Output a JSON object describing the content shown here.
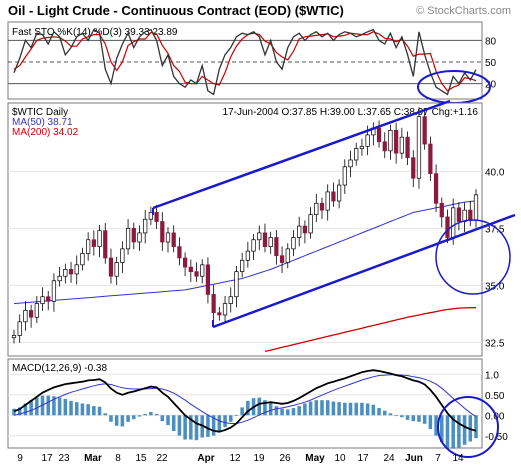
{
  "title": "Oil - Light Crude - Continuous Contract (EOD) ($WTIC)",
  "watermark": "© StockCharts.com",
  "colors": {
    "background": "#ffffff",
    "frame": "#7a7a7a",
    "up_candle": "#ffffff",
    "down_candle": "#8b1a3c",
    "candle_wick": "#000000",
    "ma50": "#3333cc",
    "ma200": "#cc0000",
    "sto_k": "#333333",
    "sto_d": "#cc0000",
    "macd_line": "#000000",
    "macd_signal": "#3333cc",
    "histogram": "#4a8fc0",
    "annotation": "#1a1acc",
    "title_bar": "#000000"
  },
  "sto_panel": {
    "label": "Fast STO %K(14) %D(3) 39.33 23.89",
    "ticks": [
      "80",
      "50",
      "20"
    ],
    "levels": [
      80,
      50,
      20
    ]
  },
  "price_panel": {
    "symbol": "$WTIC Daily",
    "ma50_label": "MA(50) 38.71",
    "ma200_label": "MA(200) 34.02",
    "ohlc": "17-Jun-2004 O:37.85 H:39.00 L:37.65 C:38.97 Chg:+1.16",
    "ticks": [
      "40.0",
      "37.5",
      "35.0",
      "32.5"
    ],
    "tick_values": [
      40.0,
      37.5,
      35.0,
      32.5
    ]
  },
  "macd_panel": {
    "label": "MACD(12,26,9) -0.38",
    "ticks": [
      "1.0",
      "0.50",
      "0.00",
      "-0.50"
    ],
    "tick_values": [
      1.0,
      0.5,
      0.0,
      -0.5
    ]
  },
  "x_axis": {
    "labels": [
      "9",
      "17",
      "23",
      "Mar",
      "8",
      "15",
      "22",
      "Apr",
      "12",
      "19",
      "26",
      "May",
      "10",
      "17",
      "24",
      "Jun",
      "7",
      "14"
    ]
  },
  "chart_data": {
    "type": "candlestick",
    "title": "Oil - Light Crude - Continuous Contract (EOD) ($WTIC)",
    "ylim": [
      31.9,
      43.0
    ],
    "series": [
      {
        "name": "$WTIC Daily",
        "open": [
          32.7,
          32.8,
          33.4,
          33.9,
          33.6,
          34.2,
          34.5,
          34.3,
          35.2,
          35.4,
          35.7,
          35.5,
          35.9,
          36.4,
          37.0,
          36.7,
          37.4,
          36.2,
          35.4,
          36.0,
          36.6,
          37.5,
          36.9,
          37.3,
          37.9,
          38.2,
          37.8,
          36.9,
          37.3,
          36.7,
          36.2,
          35.8,
          35.6,
          35.4,
          35.9,
          34.6,
          33.8,
          33.7,
          34.2,
          34.5,
          35.6,
          36.1,
          36.5,
          37.0,
          37.3,
          36.7,
          37.1,
          36.3,
          36.0,
          36.6,
          37.1,
          37.6,
          37.3,
          38.1,
          38.6,
          38.3,
          39.1,
          38.7,
          39.4,
          40.2,
          40.5,
          41.0,
          41.1,
          41.6,
          41.9,
          41.3,
          40.9,
          41.8,
          40.8,
          41.5,
          40.6,
          39.7,
          42.4,
          41.2,
          39.9,
          38.6,
          38.0,
          37.1,
          38.4,
          37.8,
          38.3,
          37.85
        ],
        "close": [
          32.8,
          33.4,
          33.9,
          33.6,
          34.2,
          34.5,
          34.3,
          35.2,
          35.4,
          35.7,
          35.5,
          35.9,
          36.4,
          37.0,
          36.7,
          37.4,
          36.2,
          35.4,
          36.0,
          36.6,
          37.5,
          36.9,
          37.3,
          37.9,
          38.2,
          37.8,
          36.9,
          37.3,
          36.7,
          36.2,
          35.8,
          35.6,
          35.4,
          35.9,
          34.6,
          33.8,
          33.7,
          34.2,
          34.5,
          35.6,
          36.1,
          36.5,
          37.0,
          37.3,
          36.7,
          37.1,
          36.3,
          36.0,
          36.6,
          37.1,
          37.6,
          37.3,
          38.1,
          38.6,
          38.3,
          39.1,
          38.7,
          39.4,
          40.2,
          40.5,
          41.0,
          41.1,
          41.6,
          41.9,
          41.3,
          40.9,
          41.8,
          40.8,
          41.5,
          40.6,
          39.7,
          42.4,
          41.2,
          39.9,
          38.6,
          38.0,
          37.1,
          38.4,
          37.8,
          38.3,
          37.85,
          38.97
        ]
      },
      {
        "name": "MA(50)",
        "x_start": 0,
        "values": [
          34.2,
          34.22,
          34.24,
          34.26,
          34.28,
          34.3,
          34.32,
          34.34,
          34.36,
          34.38,
          34.4,
          34.42,
          34.44,
          34.46,
          34.48,
          34.5,
          34.52,
          34.54,
          34.56,
          34.58,
          34.6,
          34.62,
          34.64,
          34.66,
          34.68,
          34.7,
          34.72,
          34.74,
          34.76,
          34.78,
          34.8,
          34.85,
          34.9,
          34.95,
          35.0,
          35.05,
          35.1,
          35.15,
          35.2,
          35.25,
          35.3,
          35.38,
          35.46,
          35.54,
          35.62,
          35.7,
          35.8,
          35.9,
          36.0,
          36.1,
          36.2,
          36.3,
          36.4,
          36.5,
          36.6,
          36.7,
          36.8,
          36.9,
          37.0,
          37.1,
          37.2,
          37.3,
          37.4,
          37.5,
          37.6,
          37.7,
          37.8,
          37.9,
          38.0,
          38.1,
          38.2,
          38.25,
          38.3,
          38.35,
          38.4,
          38.45,
          38.5,
          38.55,
          38.6,
          38.65,
          38.68,
          38.71
        ]
      },
      {
        "name": "MA(200)",
        "x_start": 44,
        "values": [
          32.1,
          32.16,
          32.22,
          32.28,
          32.34,
          32.4,
          32.46,
          32.52,
          32.58,
          32.64,
          32.7,
          32.76,
          32.82,
          32.88,
          32.94,
          33.0,
          33.06,
          33.12,
          33.18,
          33.24,
          33.3,
          33.36,
          33.42,
          33.48,
          33.54,
          33.6,
          33.65,
          33.7,
          33.75,
          33.8,
          33.85,
          33.9,
          33.94,
          33.97,
          34.0,
          34.01,
          34.02,
          34.02
        ]
      },
      {
        "name": "Fast STO %K(14)",
        "values": [
          35,
          55,
          80,
          70,
          90,
          88,
          75,
          92,
          85,
          60,
          70,
          85,
          90,
          80,
          95,
          90,
          40,
          20,
          55,
          75,
          90,
          70,
          85,
          92,
          95,
          80,
          45,
          60,
          30,
          20,
          15,
          25,
          20,
          45,
          10,
          5,
          40,
          60,
          70,
          85,
          90,
          88,
          92,
          85,
          60,
          80,
          50,
          40,
          70,
          85,
          90,
          80,
          88,
          92,
          85,
          90,
          80,
          88,
          92,
          90,
          85,
          88,
          92,
          95,
          80,
          75,
          90,
          70,
          85,
          60,
          30,
          92,
          60,
          35,
          15,
          10,
          5,
          30,
          20,
          35,
          25,
          39.33
        ]
      },
      {
        "name": "Fast STO %D(3)",
        "values": [
          40,
          45,
          57,
          68,
          80,
          83,
          84,
          85,
          84,
          79,
          72,
          72,
          82,
          85,
          88,
          88,
          75,
          50,
          38,
          50,
          73,
          78,
          82,
          82,
          91,
          89,
          73,
          62,
          45,
          37,
          22,
          20,
          20,
          30,
          25,
          20,
          18,
          35,
          57,
          72,
          82,
          88,
          90,
          88,
          79,
          75,
          63,
          57,
          53,
          65,
          82,
          85,
          86,
          87,
          88,
          89,
          85,
          86,
          87,
          90,
          89,
          88,
          88,
          92,
          89,
          83,
          82,
          78,
          82,
          72,
          58,
          61,
          61,
          62,
          37,
          20,
          10,
          15,
          18,
          28,
          27,
          23.89
        ]
      },
      {
        "name": "MACD(12,26,9)",
        "values": [
          0.1,
          0.15,
          0.25,
          0.35,
          0.45,
          0.55,
          0.62,
          0.68,
          0.72,
          0.76,
          0.78,
          0.8,
          0.82,
          0.85,
          0.86,
          0.88,
          0.8,
          0.65,
          0.55,
          0.5,
          0.55,
          0.58,
          0.62,
          0.66,
          0.7,
          0.68,
          0.55,
          0.45,
          0.3,
          0.15,
          0.0,
          -0.1,
          -0.2,
          -0.25,
          -0.32,
          -0.38,
          -0.4,
          -0.36,
          -0.3,
          -0.2,
          -0.05,
          0.1,
          0.2,
          0.28,
          0.3,
          0.32,
          0.3,
          0.28,
          0.3,
          0.35,
          0.42,
          0.5,
          0.58,
          0.66,
          0.72,
          0.78,
          0.82,
          0.86,
          0.9,
          0.95,
          1.0,
          1.05,
          1.08,
          1.1,
          1.08,
          1.05,
          1.02,
          0.98,
          0.95,
          0.9,
          0.85,
          0.82,
          0.75,
          0.62,
          0.45,
          0.25,
          0.05,
          -0.1,
          -0.2,
          -0.28,
          -0.34,
          -0.38
        ]
      },
      {
        "name": "MACD Signal",
        "values": [
          0.0,
          0.03,
          0.07,
          0.12,
          0.18,
          0.25,
          0.32,
          0.39,
          0.45,
          0.51,
          0.56,
          0.6,
          0.64,
          0.68,
          0.72,
          0.75,
          0.77,
          0.75,
          0.71,
          0.67,
          0.65,
          0.64,
          0.64,
          0.64,
          0.65,
          0.66,
          0.64,
          0.6,
          0.54,
          0.46,
          0.37,
          0.27,
          0.18,
          0.09,
          0.01,
          -0.07,
          -0.14,
          -0.18,
          -0.2,
          -0.2,
          -0.17,
          -0.12,
          -0.06,
          0.01,
          0.07,
          0.12,
          0.16,
          0.18,
          0.21,
          0.24,
          0.28,
          0.32,
          0.37,
          0.43,
          0.49,
          0.55,
          0.61,
          0.66,
          0.71,
          0.76,
          0.81,
          0.86,
          0.9,
          0.94,
          0.97,
          0.98,
          0.99,
          0.99,
          0.98,
          0.97,
          0.94,
          0.92,
          0.88,
          0.83,
          0.76,
          0.66,
          0.54,
          0.41,
          0.29,
          0.17,
          0.06,
          -0.03
        ]
      }
    ]
  }
}
